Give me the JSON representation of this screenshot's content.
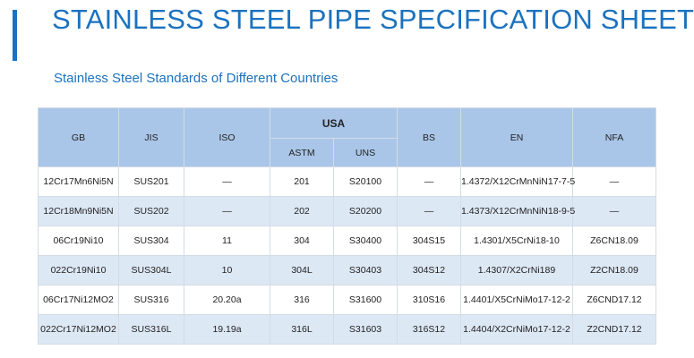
{
  "title": "STAINLESS STEEL PIPE SPECIFICATION SHEET",
  "subtitle": "Stainless Steel Standards of Different Countries",
  "colors": {
    "accent": "#1b72bf",
    "header_bg": "#a9c6e8",
    "row_alt_bg": "#dde8f5"
  },
  "table": {
    "headers": {
      "gb": "GB",
      "jis": "JIS",
      "iso": "ISO",
      "usa": "USA",
      "astm": "ASTM",
      "uns": "UNS",
      "bs": "BS",
      "en": "EN",
      "nfa": "NFA"
    },
    "rows": [
      {
        "gb": "12Cr17Mn6Ni5N",
        "jis": "SUS201",
        "iso": "—",
        "astm": "201",
        "uns": "S20100",
        "bs": "—",
        "en": "1.4372/X12CrMnNiN17-7-5",
        "nfa": "—"
      },
      {
        "gb": "12Cr18Mn9Ni5N",
        "jis": "SUS202",
        "iso": "—",
        "astm": "202",
        "uns": "S20200",
        "bs": "—",
        "en": "1.4373/X12CrMnNiN18-9-5",
        "nfa": "—"
      },
      {
        "gb": "06Cr19Ni10",
        "jis": "SUS304",
        "iso": "11",
        "astm": "304",
        "uns": "S30400",
        "bs": "304S15",
        "en": "1.4301/X5CrNi18-10",
        "nfa": "Z6CN18.09"
      },
      {
        "gb": "022Cr19Ni10",
        "jis": "SUS304L",
        "iso": "10",
        "astm": "304L",
        "uns": "S30403",
        "bs": "304S12",
        "en": "1.4307/X2CrNi189",
        "nfa": "Z2CN18.09"
      },
      {
        "gb": "06Cr17Ni12MO2",
        "jis": "SUS316",
        "iso": "20.20a",
        "astm": "316",
        "uns": "S31600",
        "bs": "310S16",
        "en": "1.4401/X5CrNiMo17-12-2",
        "nfa": "Z6CND17.12"
      },
      {
        "gb": "022Cr17Ni12MO2",
        "jis": "SUS316L",
        "iso": "19.19a",
        "astm": "316L",
        "uns": "S31603",
        "bs": "316S12",
        "en": "1.4404/X2CrNiMo17-12-2",
        "nfa": "Z2CND17.12"
      }
    ]
  }
}
